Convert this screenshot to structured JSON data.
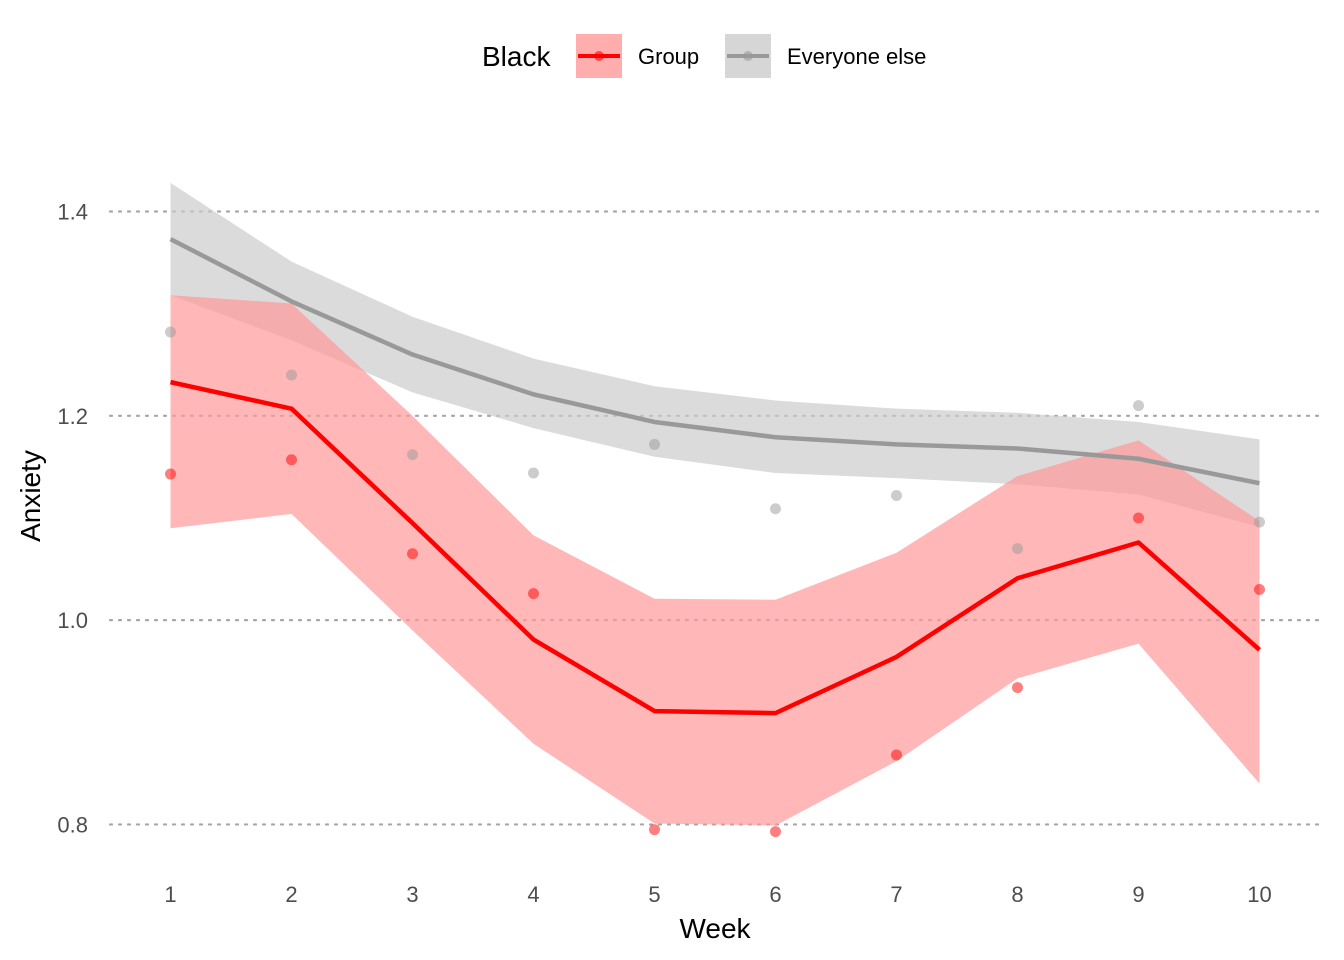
{
  "chart_data": {
    "type": "line",
    "xlabel": "Week",
    "ylabel": "Anxiety",
    "x": [
      1,
      2,
      3,
      4,
      5,
      6,
      7,
      8,
      9,
      10
    ],
    "x_ticks": [
      "1",
      "2",
      "3",
      "4",
      "5",
      "6",
      "7",
      "8",
      "9",
      "10"
    ],
    "xlim": [
      0.5,
      10.5
    ],
    "ylim": [
      0.775,
      1.47
    ],
    "y_ticks": [
      "0.8",
      "1.0",
      "1.2",
      "1.4"
    ],
    "y_tick_values": [
      0.8,
      1.0,
      1.2,
      1.4
    ],
    "grid": "horizontal dotted",
    "legend": {
      "title": "Black",
      "placement": "top"
    },
    "series": [
      {
        "name": "Everyone else",
        "color": "#999999",
        "ribbon_color": "#cccccc",
        "fit": [
          1.373,
          1.312,
          1.26,
          1.221,
          1.194,
          1.179,
          1.172,
          1.168,
          1.158,
          1.134
        ],
        "lower": [
          1.318,
          1.274,
          1.223,
          1.188,
          1.16,
          1.144,
          1.139,
          1.133,
          1.123,
          1.091
        ],
        "upper": [
          1.428,
          1.351,
          1.297,
          1.256,
          1.229,
          1.215,
          1.207,
          1.203,
          1.194,
          1.177
        ],
        "points": [
          1.282,
          1.24,
          1.162,
          1.144,
          1.172,
          1.109,
          1.122,
          1.07,
          1.21,
          1.096
        ]
      },
      {
        "name": "Group",
        "color": "#ff0000",
        "ribbon_color": "#ff9999",
        "fit": [
          1.233,
          1.207,
          1.095,
          0.981,
          0.911,
          0.909,
          0.964,
          1.041,
          1.076,
          0.971
        ],
        "lower": [
          1.09,
          1.104,
          0.99,
          0.879,
          0.801,
          0.799,
          0.862,
          0.943,
          0.977,
          0.84
        ],
        "upper": [
          1.318,
          1.31,
          1.2,
          1.083,
          1.021,
          1.02,
          1.066,
          1.141,
          1.176,
          1.097
        ],
        "points": [
          1.143,
          1.157,
          1.065,
          1.026,
          0.795,
          0.793,
          0.868,
          0.934,
          1.1,
          1.03
        ]
      }
    ]
  }
}
